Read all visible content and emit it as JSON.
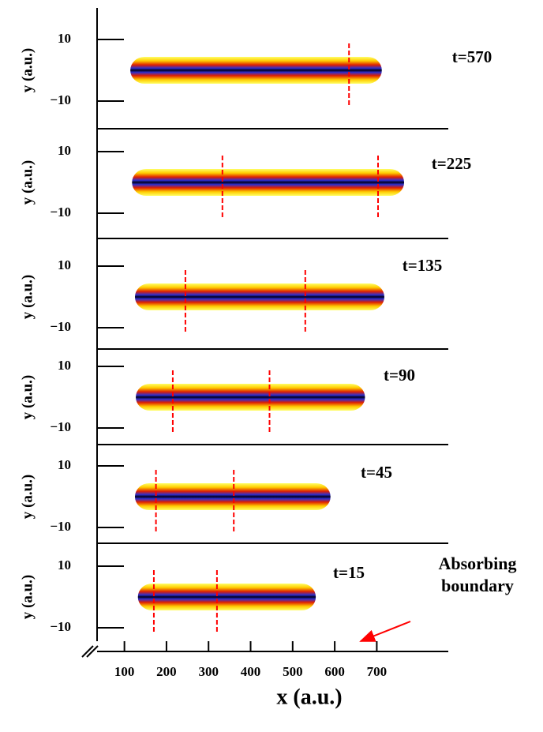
{
  "chart_data": {
    "type": "stacked-panels",
    "xlabel": "x (a.u.)",
    "xlim": [
      35,
      870
    ],
    "xticks": [
      100,
      200,
      300,
      400,
      500,
      600,
      700
    ],
    "annotation": "Absorbing boundary",
    "panels": [
      {
        "label": "t=570",
        "ylabel": "y (a.u.)",
        "ylim": [
          -20,
          20
        ],
        "yticks": [
          10,
          {
            "value": -10,
            "label": "−10"
          }
        ],
        "packet": [
          114,
          712
        ],
        "markers": [
          634
        ]
      },
      {
        "label": "t=225",
        "ylabel": "y (a.u.)",
        "ylim": [
          -20,
          20
        ],
        "yticks": [
          10,
          {
            "value": -10,
            "label": "−10"
          }
        ],
        "packet": [
          118,
          765
        ],
        "markers": [
          333,
          703
        ]
      },
      {
        "label": "t=135",
        "ylabel": "y (a.u.)",
        "ylim": [
          -20,
          20
        ],
        "yticks": [
          10,
          {
            "value": -10,
            "label": "−10"
          }
        ],
        "packet": [
          125,
          718
        ],
        "markers": [
          245,
          530
        ]
      },
      {
        "label": "t=90",
        "ylabel": "y (a.u.)",
        "ylim": [
          -20,
          20
        ],
        "yticks": [
          10,
          {
            "value": -10,
            "label": "−10"
          }
        ],
        "packet": [
          127,
          672
        ],
        "markers": [
          215,
          445
        ]
      },
      {
        "label": "t=45",
        "ylabel": "y (a.u.)",
        "ylim": [
          -20,
          20
        ],
        "yticks": [
          10,
          {
            "value": -10,
            "label": "−10"
          }
        ],
        "packet": [
          125,
          590
        ],
        "markers": [
          175,
          360
        ]
      },
      {
        "label": "t=15",
        "ylabel": "y (a.u.)",
        "ylim": [
          -20,
          20
        ],
        "yticks": [
          10,
          {
            "value": -10,
            "label": "−10"
          }
        ],
        "packet": [
          132,
          555
        ],
        "markers": [
          170,
          320
        ]
      }
    ]
  }
}
